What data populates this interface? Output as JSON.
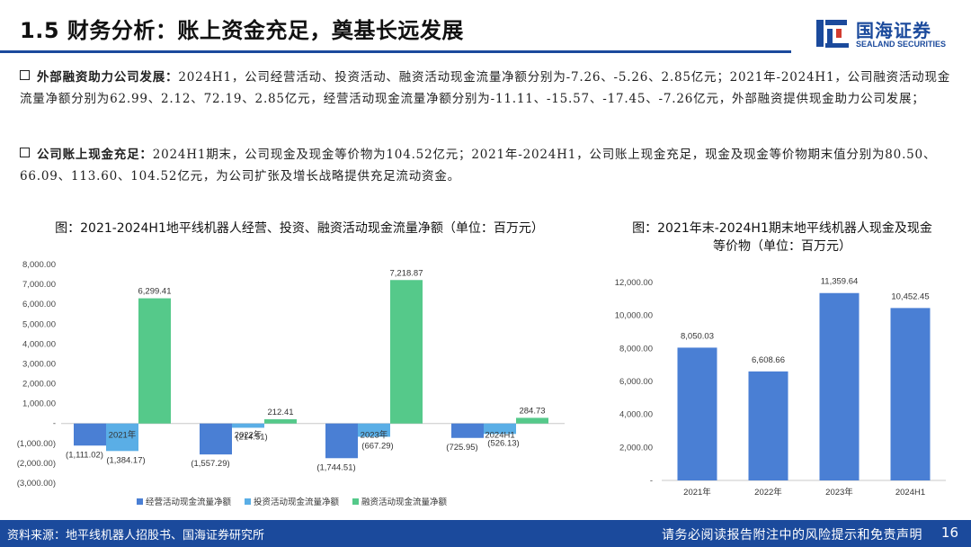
{
  "header": {
    "title": "1.5 财务分析：账上资金充足，奠基长远发展",
    "logo_cn": "国海证券",
    "logo_en": "SEALAND SECURITIES"
  },
  "bullets": [
    {
      "lead": "外部融资助力公司发展：",
      "text": "2024H1，公司经营活动、投资活动、融资活动现金流量净额分别为-7.26、-5.26、2.85亿元；2021年-2024H1，公司融资活动现金流量净额分别为62.99、2.12、72.19、2.85亿元，经营活动现金流量净额分别为-11.11、-15.57、-17.45、-7.26亿元，外部融资提供现金助力公司发展；"
    },
    {
      "lead": "公司账上现金充足：",
      "text": "2024H1期末，公司现金及现金等价物为104.52亿元；2021年-2024H1，公司账上现金充足，现金及现金等价物期末值分别为80.50、66.09、113.60、104.52亿元，为公司扩张及增长战略提供充足流动资金。"
    }
  ],
  "chart_data": [
    {
      "type": "bar",
      "title": "图：2021-2024H1地平线机器人经营、投资、融资活动现金流量净额（单位：百万元）",
      "categories": [
        "2021年",
        "2022年",
        "2023年",
        "2024H1"
      ],
      "series": [
        {
          "name": "经营活动现金流量净额",
          "color": "#4a7fd4",
          "values": [
            -1111.02,
            -1557.29,
            -1744.51,
            -725.95
          ],
          "labels": [
            "(1,111.02)",
            "(1,557.29)",
            "(1,744.51)",
            "(725.95)"
          ]
        },
        {
          "name": "投资活动现金流量净额",
          "color": "#5aaee6",
          "values": [
            -1384.17,
            -214.51,
            -667.29,
            -526.13
          ],
          "labels": [
            "(1,384.17)",
            "(214.51)",
            "(667.29)",
            "(526.13)"
          ]
        },
        {
          "name": "融资活动现金流量净额",
          "color": "#55c98a",
          "values": [
            6299.41,
            212.41,
            7218.87,
            284.73
          ],
          "labels": [
            "6,299.41",
            "212.41",
            "7,218.87",
            "284.73"
          ]
        }
      ],
      "ylim": [
        -3000,
        8000
      ],
      "yticks": [
        8000,
        7000,
        6000,
        5000,
        4000,
        3000,
        2000,
        1000,
        0,
        -1000,
        -2000,
        -3000
      ],
      "ytick_labels": [
        "8,000.00",
        "7,000.00",
        "6,000.00",
        "5,000.00",
        "4,000.00",
        "3,000.00",
        "2,000.00",
        "1,000.00",
        "-",
        "(1,000.00)",
        "(2,000.00)",
        "(3,000.00)"
      ],
      "grid": false,
      "legend": "bottom"
    },
    {
      "type": "bar",
      "title_line1": "图：2021年末-2024H1期末地平线机器人现金及现金",
      "title_line2": "等价物（单位：百万元）",
      "categories": [
        "2021年",
        "2022年",
        "2023年",
        "2024H1"
      ],
      "values": [
        8050.03,
        6608.66,
        11359.64,
        10452.45
      ],
      "labels": [
        "8,050.03",
        "6,608.66",
        "11,359.64",
        "10,452.45"
      ],
      "color": "#4a7fd4",
      "ylim": [
        0,
        12000
      ],
      "yticks": [
        12000,
        10000,
        8000,
        6000,
        4000,
        2000,
        0
      ],
      "ytick_labels": [
        "12,000.00",
        "10,000.00",
        "8,000.00",
        "6,000.00",
        "4,000.00",
        "2,000.00",
        "-"
      ],
      "grid": false
    }
  ],
  "footer": {
    "source": "资料来源：地平线机器人招股书、国海证券研究所",
    "disclaimer": "请务必阅读报告附注中的风险提示和免责声明",
    "page": "16"
  }
}
